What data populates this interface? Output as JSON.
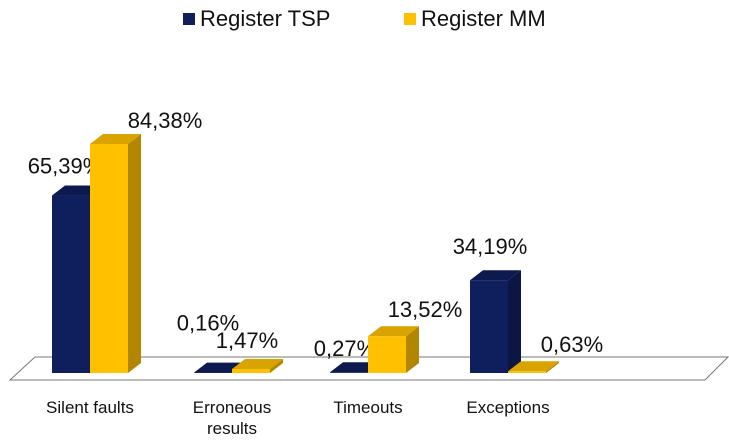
{
  "chart_data": {
    "type": "bar3d",
    "categories": [
      "Silent faults",
      "Erroneous results",
      "Timeouts",
      "Exceptions"
    ],
    "series": [
      {
        "name": "Register TSP",
        "color": "#0f1f5e",
        "values": [
          65.39,
          0.16,
          0.27,
          34.19
        ],
        "value_labels": [
          "65,39%",
          "0,16%",
          "0,27%",
          "34,19%"
        ]
      },
      {
        "name": "Register MM",
        "color": "#ffc000",
        "values": [
          84.38,
          1.47,
          13.52,
          0.63
        ],
        "value_labels": [
          "84,38%",
          "1,47%",
          "13,52%",
          "0,63%"
        ]
      }
    ],
    "legend": "top"
  }
}
